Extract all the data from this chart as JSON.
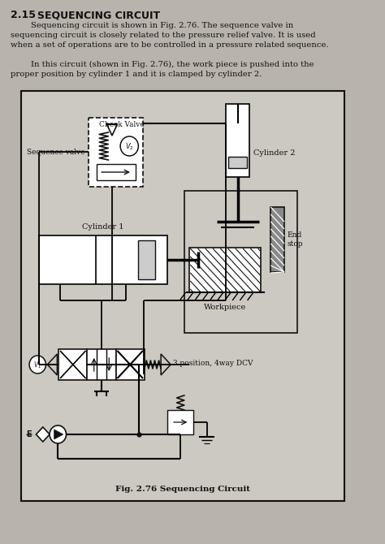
{
  "title_num": "2.15",
  "title_text": "SEQUENCING CIRCUIT",
  "para1": "        Sequencing circuit is shown in Fig. 2.76. The sequence valve in\nsequencing circuit is closely related to the pressure relief valve. It is used\nwhen a set of operations are to be controlled in a pressure related sequence.",
  "para2": "        In this circuit (shown in Fig. 2.76), the work piece is pushed into the\nproper position by cylinder 1 and it is clamped by cylinder 2.",
  "fig_caption": "Fig. 2.76 Sequencing Circuit",
  "bg_color": "#ccc8c2",
  "box_bg": "#ccc8c2",
  "text_color": "#111111",
  "line_color": "#111111",
  "page_bg": "#b8b3ac"
}
